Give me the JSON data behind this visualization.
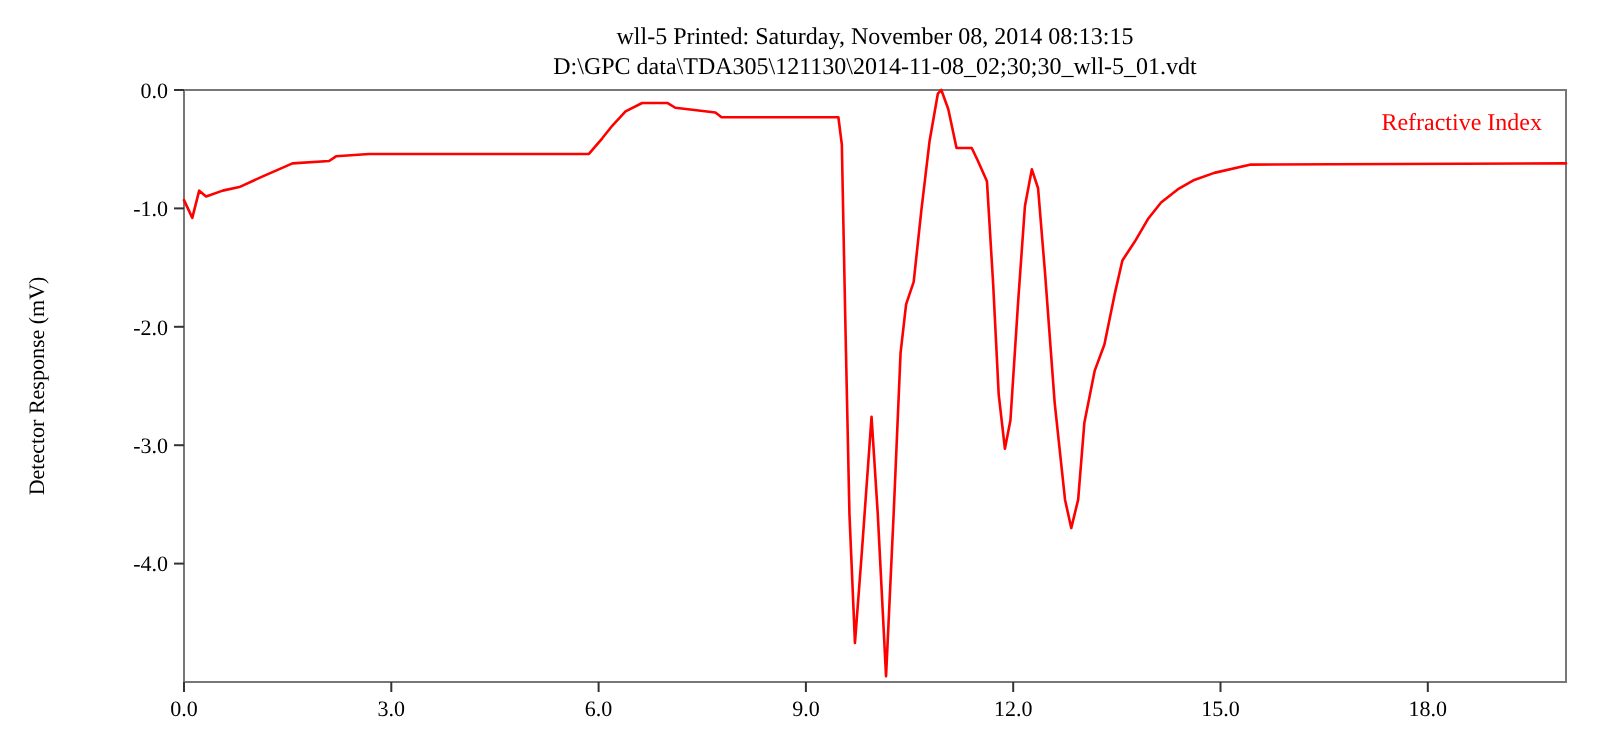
{
  "chart_data": {
    "type": "line",
    "title": "wll-5   Printed: Saturday, November 08, 2014 08:13:15",
    "subtitle": "D:\\GPC data\\TDA305\\121130\\2014-11-08_02;30;30_wll-5_01.vdt",
    "ylabel": "Detector Response (mV)",
    "xlim": [
      0,
      20
    ],
    "ylim": [
      -5,
      0
    ],
    "xticks": [
      {
        "value": 0,
        "label": "0.0"
      },
      {
        "value": 3,
        "label": "3.0"
      },
      {
        "value": 6,
        "label": "6.0"
      },
      {
        "value": 9,
        "label": "9.0"
      },
      {
        "value": 12,
        "label": "12.0"
      },
      {
        "value": 15,
        "label": "15.0"
      },
      {
        "value": 18,
        "label": "18.0"
      }
    ],
    "yticks": [
      {
        "value": 0,
        "label": "0.0"
      },
      {
        "value": -1,
        "label": "-1.0"
      },
      {
        "value": -2,
        "label": "-2.0"
      },
      {
        "value": -3,
        "label": "-3.0"
      },
      {
        "value": -4,
        "label": "-4.0"
      }
    ],
    "legend": "top right",
    "grid": false,
    "marker": "none",
    "line_style": "solid",
    "series": [
      {
        "name": "Refractive Index",
        "color": "#ff0000",
        "x": [
          0,
          0.12,
          0.22,
          0.32,
          0.56,
          0.8,
          1.14,
          1.57,
          2.1,
          2.2,
          2.68,
          5.86,
          6.05,
          6.2,
          6.39,
          6.63,
          7.0,
          7.11,
          7.69,
          7.78,
          9.47,
          9.52,
          9.57,
          9.63,
          9.71,
          9.81,
          9.95,
          10.04,
          10.16,
          10.27,
          10.37,
          10.45,
          10.56,
          10.67,
          10.79,
          10.91,
          10.96,
          11.06,
          11.18,
          11.4,
          11.49,
          11.62,
          11.71,
          11.79,
          11.88,
          11.96,
          12.07,
          12.17,
          12.27,
          12.36,
          12.46,
          12.6,
          12.75,
          12.84,
          12.94,
          13.03,
          13.18,
          13.32,
          13.47,
          13.58,
          13.76,
          13.95,
          14.14,
          14.38,
          14.62,
          14.91,
          15.44,
          20
        ],
        "values": [
          -0.93,
          -1.08,
          -0.85,
          -0.9,
          -0.85,
          -0.82,
          -0.73,
          -0.62,
          -0.6,
          -0.56,
          -0.54,
          -0.54,
          -0.41,
          -0.3,
          -0.18,
          -0.11,
          -0.11,
          -0.15,
          -0.19,
          -0.23,
          -0.23,
          -0.46,
          -1.94,
          -3.58,
          -4.67,
          -3.9,
          -2.76,
          -3.58,
          -4.95,
          -3.58,
          -2.22,
          -1.81,
          -1.62,
          -1.02,
          -0.43,
          -0.03,
          0,
          -0.16,
          -0.49,
          -0.49,
          -0.6,
          -0.77,
          -1.64,
          -2.57,
          -3.03,
          -2.79,
          -1.8,
          -0.98,
          -0.67,
          -0.83,
          -1.54,
          -2.64,
          -3.46,
          -3.7,
          -3.46,
          -2.81,
          -2.37,
          -2.15,
          -1.72,
          -1.44,
          -1.28,
          -1.09,
          -0.95,
          -0.84,
          -0.76,
          -0.7,
          -0.63,
          -0.62
        ]
      }
    ]
  }
}
